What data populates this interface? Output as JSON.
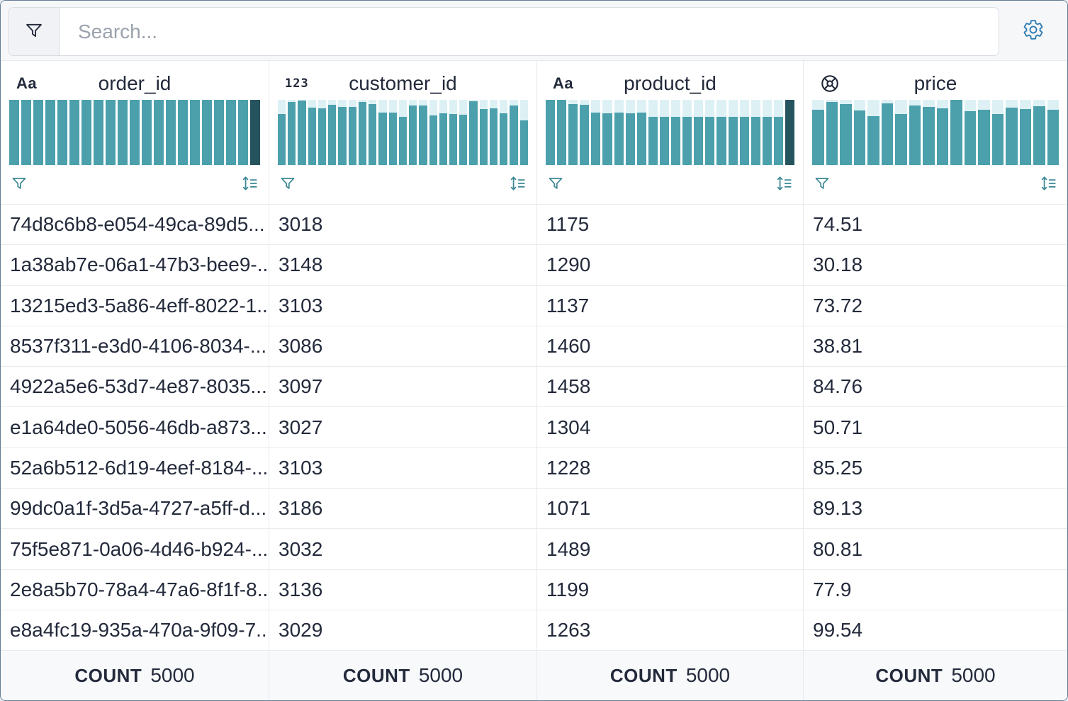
{
  "topbar": {
    "search_placeholder": "Search...",
    "filter_icon": "funnel-icon",
    "settings_icon": "gear-icon"
  },
  "colors": {
    "bar_teal": "#4BA0AC",
    "bar_dark": "#26545e",
    "bar_track": "#ddf1f5",
    "icon_teal": "#3a8793",
    "gear_blue": "#2e7cb1",
    "text_navy": "#232A3B",
    "border_light": "#e8eaee",
    "footer_bg": "#f8f9fb",
    "topbar_bg": "#f6f7f9"
  },
  "table": {
    "columns": [
      {
        "name": "order_id",
        "type": "text",
        "type_icon": "text-type-icon",
        "type_glyph": "Aa",
        "histogram": {
          "bars": [
            1,
            1,
            1,
            1,
            1,
            1,
            1,
            1,
            1,
            1,
            1,
            1,
            1,
            1,
            1,
            1,
            1,
            1,
            1,
            1,
            1
          ],
          "dark_last": true
        },
        "cells": [
          "74d8c6b8-e054-49ca-89d5...",
          "1a38ab7e-06a1-47b3-bee9-...",
          "13215ed3-5a86-4eff-8022-1...",
          "8537f311-e3d0-4106-8034-...",
          "4922a5e6-53d7-4e87-8035...",
          "e1a64de0-5056-46db-a873...",
          "52a6b512-6d19-4eef-8184-...",
          "99dc0a1f-3d5a-4727-a5ff-d...",
          "75f5e871-0a06-4d46-b924-...",
          "2e8a5b70-78a4-47a6-8f1f-8...",
          "e8a4fc19-935a-470a-9f09-7..."
        ],
        "count_label": "COUNT",
        "count_value": "5000"
      },
      {
        "name": "customer_id",
        "type": "integer",
        "type_icon": "number-type-icon",
        "type_glyph": "123",
        "histogram": {
          "bars": [
            0.78,
            0.97,
            0.99,
            0.88,
            0.87,
            0.92,
            0.89,
            0.89,
            0.97,
            0.93,
            0.8,
            0.8,
            0.74,
            0.91,
            0.91,
            0.76,
            0.79,
            0.78,
            0.77,
            0.98,
            0.86,
            0.87,
            0.79,
            0.91,
            0.69
          ],
          "dark_last": false
        },
        "cells": [
          "3018",
          "3148",
          "3103",
          "3086",
          "3097",
          "3027",
          "3103",
          "3186",
          "3032",
          "3136",
          "3029"
        ],
        "count_label": "COUNT",
        "count_value": "5000"
      },
      {
        "name": "product_id",
        "type": "text",
        "type_icon": "text-type-icon",
        "type_glyph": "Aa",
        "histogram": {
          "bars": [
            1,
            1,
            0.93,
            0.92,
            0.8,
            0.79,
            0.8,
            0.79,
            0.8,
            0.74,
            0.74,
            0.74,
            0.74,
            0.74,
            0.74,
            0.74,
            0.74,
            0.74,
            0.74,
            0.74,
            0.74,
            1
          ],
          "dark_last": true
        },
        "cells": [
          "1175",
          "1290",
          "1137",
          "1460",
          "1458",
          "1304",
          "1228",
          "1071",
          "1489",
          "1199",
          "1263"
        ],
        "count_label": "COUNT",
        "count_value": "5000"
      },
      {
        "name": "price",
        "type": "float",
        "type_icon": "float-type-icon",
        "type_glyph": "",
        "histogram": {
          "bars": [
            0.85,
            0.97,
            0.93,
            0.84,
            0.75,
            0.95,
            0.78,
            0.91,
            0.89,
            0.87,
            1.0,
            0.83,
            0.85,
            0.78,
            0.88,
            0.86,
            0.9,
            0.85
          ],
          "dark_last": false
        },
        "cells": [
          "74.51",
          "30.18",
          "73.72",
          "38.81",
          "84.76",
          "50.71",
          "85.25",
          "89.13",
          "80.81",
          "77.9",
          "99.54"
        ],
        "count_label": "COUNT",
        "count_value": "5000"
      }
    ]
  }
}
